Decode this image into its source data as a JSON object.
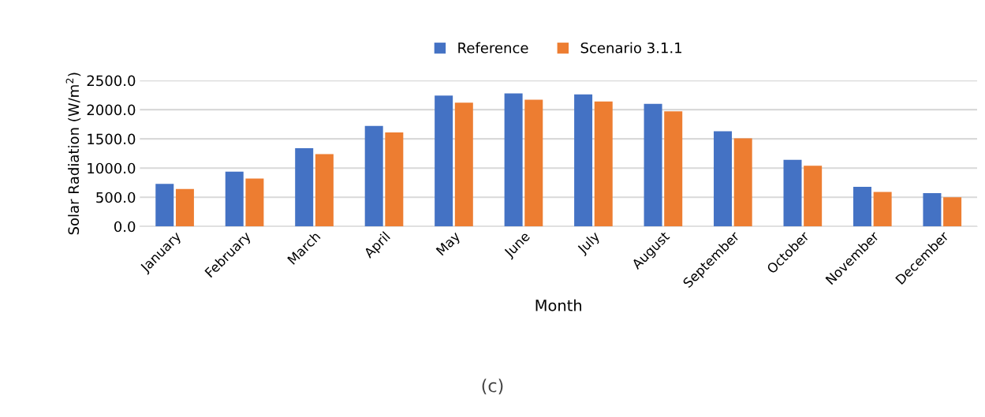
{
  "chart_data": {
    "type": "bar",
    "categories": [
      "January",
      "February",
      "March",
      "April",
      "May",
      "June",
      "July",
      "August",
      "September",
      "October",
      "November",
      "December"
    ],
    "series": [
      {
        "name": "Reference",
        "color": "#4472c4",
        "values": [
          730,
          940,
          1340,
          1720,
          2240,
          2280,
          2260,
          2100,
          1630,
          1140,
          680,
          570
        ]
      },
      {
        "name": "Scenario 3.1.1",
        "color": "#ed7d31",
        "values": [
          640,
          820,
          1240,
          1610,
          2120,
          2170,
          2140,
          1970,
          1510,
          1040,
          590,
          500
        ]
      }
    ],
    "xlabel": "Month",
    "ylabel": "Solar Radiation (W/m$^{2}$)",
    "ylim": [
      0,
      2500
    ],
    "yticks": [
      {
        "value": 0,
        "label": "0.0"
      },
      {
        "value": 500,
        "label": "500.0"
      },
      {
        "value": 1000,
        "label": "1000.0"
      },
      {
        "value": 1500,
        "label": "1500.0"
      },
      {
        "value": 2000,
        "label": "2000.0"
      },
      {
        "value": 2500,
        "label": "2500.0"
      }
    ],
    "grid": "y",
    "legend": "top",
    "annotations": [
      "(c)"
    ]
  }
}
